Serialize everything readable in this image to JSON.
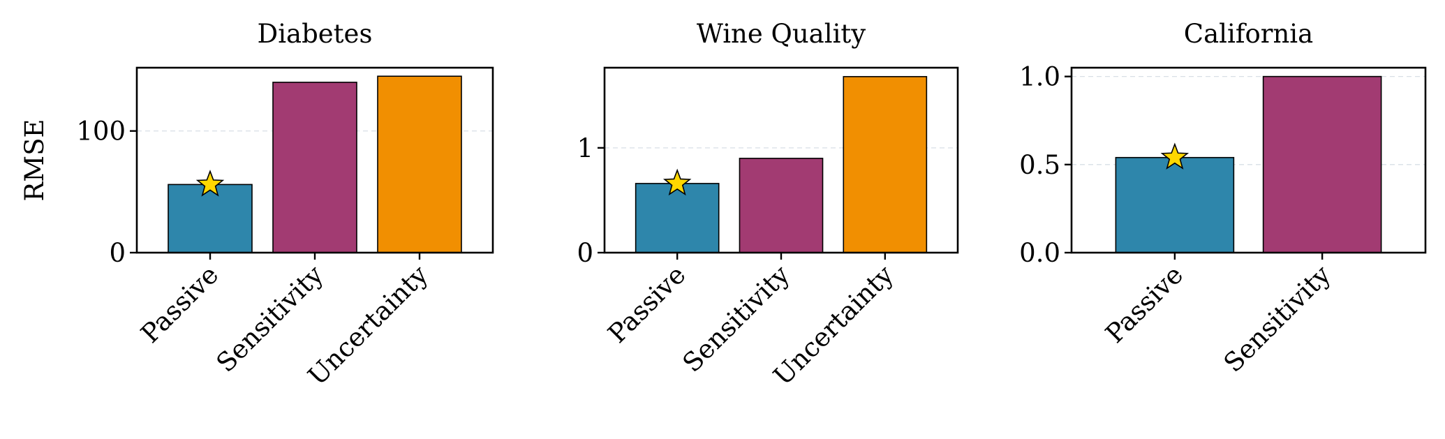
{
  "chart_data": [
    {
      "type": "bar",
      "title": "Diabetes",
      "ylabel": "RMSE",
      "categories": [
        "Passive",
        "Sensitivity",
        "Uncertainty"
      ],
      "values": [
        56,
        140,
        145
      ],
      "ylim": [
        0,
        152
      ],
      "yticks": [
        0,
        100
      ],
      "ytick_labels": [
        "0",
        "100"
      ],
      "colors": [
        "#2e86ab",
        "#a23b72",
        "#f18f01"
      ],
      "best_index": 0
    },
    {
      "type": "bar",
      "title": "Wine Quality",
      "ylabel": "",
      "categories": [
        "Passive",
        "Sensitivity",
        "Uncertainty"
      ],
      "values": [
        0.66,
        0.9,
        1.68
      ],
      "ylim": [
        0,
        1.765
      ],
      "yticks": [
        0,
        1
      ],
      "ytick_labels": [
        "0",
        "1"
      ],
      "colors": [
        "#2e86ab",
        "#a23b72",
        "#f18f01"
      ],
      "best_index": 0
    },
    {
      "type": "bar",
      "title": "California",
      "ylabel": "",
      "categories": [
        "Passive",
        "Sensitivity"
      ],
      "values": [
        0.54,
        1.0
      ],
      "ylim": [
        0,
        1.05
      ],
      "yticks": [
        0,
        0.5,
        1.0
      ],
      "ytick_labels": [
        "0.0",
        "0.5",
        "1.0"
      ],
      "colors": [
        "#2e86ab",
        "#a23b72"
      ],
      "best_index": 0
    }
  ]
}
